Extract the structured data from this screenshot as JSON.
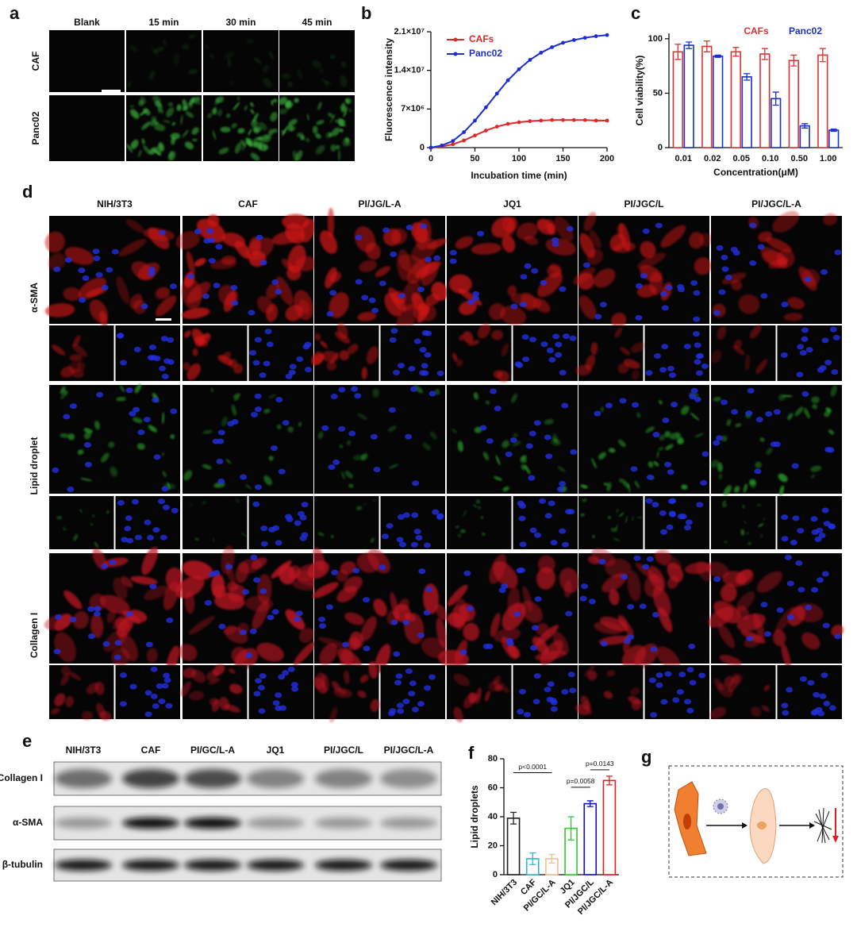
{
  "panel_labels": [
    "a",
    "b",
    "c",
    "d",
    "e",
    "f",
    "g"
  ],
  "panel_a": {
    "columns": [
      "Blank",
      "15 min",
      "30 min",
      "45 min"
    ],
    "rows": [
      "CAF",
      "Panc02"
    ]
  },
  "panel_d": {
    "columns": [
      "NIH/3T3",
      "CAF",
      "PI/JG/L-A",
      "JQ1",
      "PI/JGC/L",
      "PI/JGC/L-A"
    ],
    "rows": [
      "α-SMA",
      "Lipid droplet",
      "Collagen I"
    ]
  },
  "panel_e": {
    "columns": [
      "NIH/3T3",
      "CAF",
      "PI/GC/L-A",
      "JQ1",
      "PI/JGC/L",
      "PI/JGC/L-A"
    ],
    "rows": [
      "Collagen I",
      "α-SMA",
      "β-tubulin"
    ]
  },
  "chart_data": [
    {
      "type": "line",
      "xlabel": "Incubation time (min)",
      "ylabel": "Fluorescence intensity",
      "x": [
        0,
        12.5,
        25,
        37.5,
        50,
        62.5,
        75,
        87.5,
        100,
        112.5,
        125,
        137.5,
        150,
        162.5,
        175,
        187.5,
        200
      ],
      "xlim": [
        0,
        200
      ],
      "xticks": [
        0,
        50,
        100,
        150,
        200
      ],
      "ylim": [
        0,
        21000000
      ],
      "yticks": [
        0,
        {
          "value": 7000000,
          "label": "7×10⁶"
        },
        {
          "value": 14000000,
          "label": "1.4×10⁷"
        },
        {
          "value": 21000000,
          "label": "2.1×10⁷"
        }
      ],
      "series": [
        {
          "name": "CAFs",
          "color": "#e02828",
          "values": [
            0,
            200000,
            600000,
            1300000,
            2200000,
            3100000,
            3800000,
            4300000,
            4600000,
            4800000,
            4900000,
            5000000,
            5000000,
            5000000,
            5000000,
            4900000,
            4900000
          ]
        },
        {
          "name": "Panc02",
          "color": "#1a2ed0",
          "values": [
            0,
            400000,
            1200000,
            2800000,
            4900000,
            7300000,
            9800000,
            12200000,
            14200000,
            15900000,
            17200000,
            18200000,
            19000000,
            19500000,
            19900000,
            20200000,
            20400000
          ]
        }
      ]
    },
    {
      "type": "grouped_bar",
      "xlabel": "Concentration(μM)",
      "ylabel": "Cell viability(%)",
      "categories": [
        "0.01",
        "0.02",
        "0.05",
        "0.10",
        "0.50",
        "1.00"
      ],
      "ylim": [
        0,
        105
      ],
      "yticks": [
        0,
        50,
        100
      ],
      "series": [
        {
          "name": "CAFs",
          "color": "#e03030",
          "values": [
            88,
            93,
            88,
            86,
            80,
            85
          ],
          "errors": [
            7,
            5,
            4,
            5,
            5,
            6
          ]
        },
        {
          "name": "Panc02",
          "color": "#1a2ed0",
          "values": [
            94,
            84,
            65,
            45,
            20,
            16
          ],
          "errors": [
            3,
            1,
            3,
            6,
            2,
            1
          ]
        }
      ]
    },
    {
      "type": "bar",
      "ylabel": "Lipid droplets",
      "categories": [
        "NIH/3T3",
        "CAF",
        "PI/GC/L-A",
        "JQ1",
        "PI/JGC/L",
        "PI/JGC/L-A"
      ],
      "values": [
        39,
        11,
        11,
        32,
        49,
        65
      ],
      "errors": [
        4,
        4,
        3,
        8,
        2,
        3
      ],
      "colors": [
        "#222222",
        "#30b4cc",
        "#f0c090",
        "#30c830",
        "#1010c0",
        "#e02020"
      ],
      "ylim": [
        0,
        80
      ],
      "yticks": [
        0,
        20,
        40,
        60,
        80
      ],
      "annotations": [
        "p<0.0001",
        "p=0.0058",
        "p=0.0143"
      ]
    }
  ]
}
